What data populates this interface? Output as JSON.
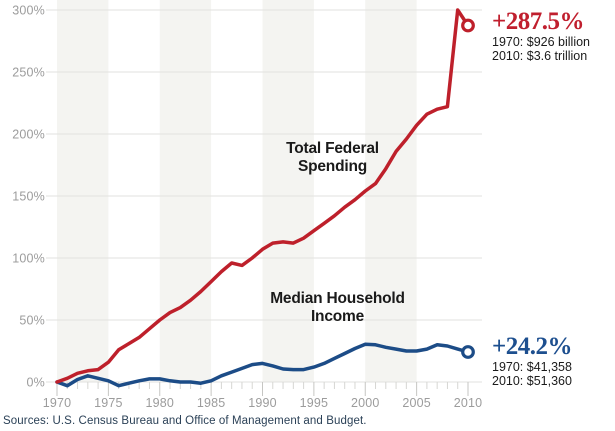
{
  "chart_data": {
    "type": "line",
    "x": [
      1970,
      1971,
      1972,
      1973,
      1974,
      1975,
      1976,
      1977,
      1978,
      1979,
      1980,
      1981,
      1982,
      1983,
      1984,
      1985,
      1986,
      1987,
      1988,
      1989,
      1990,
      1991,
      1992,
      1993,
      1994,
      1995,
      1996,
      1997,
      1998,
      1999,
      2000,
      2001,
      2002,
      2003,
      2004,
      2005,
      2006,
      2007,
      2008,
      2009,
      2010
    ],
    "series": [
      {
        "key": "spending",
        "name": "Total Federal Spending",
        "color": "#be202b",
        "values": [
          0,
          3,
          7,
          9,
          10,
          16,
          26,
          31,
          36,
          43,
          50,
          56,
          60,
          66,
          73,
          81,
          89,
          96,
          94,
          100,
          107,
          112,
          113,
          112,
          116,
          122,
          128,
          134,
          141,
          147,
          154,
          160,
          172,
          186,
          196,
          207,
          216,
          220,
          222,
          300,
          287.5
        ],
        "end_value_label": "+287.5%"
      },
      {
        "key": "income",
        "name": "Median Household Income",
        "color": "#1c4c87",
        "values": [
          0,
          -3,
          2,
          5,
          3,
          1,
          -3,
          -1,
          1,
          2.5,
          2.5,
          1,
          0,
          0,
          -1,
          1,
          5,
          8,
          11,
          14,
          15,
          13,
          10.5,
          10,
          10,
          12,
          15,
          19,
          23,
          27,
          30.5,
          30,
          28,
          26.5,
          25,
          25,
          26.5,
          30,
          29,
          26.5,
          24.2
        ],
        "end_value_label": "+24.2%"
      }
    ],
    "ylim": [
      0,
      300
    ],
    "yticks": [
      {
        "v": 0,
        "label": "0%"
      },
      {
        "v": 50,
        "label": "50%"
      },
      {
        "v": 100,
        "label": "100%"
      },
      {
        "v": 150,
        "label": "150%"
      },
      {
        "v": 200,
        "label": "200%"
      },
      {
        "v": 250,
        "label": "250%"
      },
      {
        "v": 300,
        "label": "300%"
      }
    ],
    "xticks": [
      {
        "v": 1970,
        "label": "1970"
      },
      {
        "v": 1975,
        "label": "1975"
      },
      {
        "v": 1980,
        "label": "1980"
      },
      {
        "v": 1985,
        "label": "1985"
      },
      {
        "v": 1990,
        "label": "1990"
      },
      {
        "v": 1995,
        "label": "1995"
      },
      {
        "v": 2000,
        "label": "2000"
      },
      {
        "v": 2005,
        "label": "2005"
      },
      {
        "v": 2010,
        "label": "2010"
      }
    ],
    "grid": "horizontal",
    "background_bands": "alternating light-gray 5-year columns",
    "legend_position": "inline-labels"
  },
  "series_labels": {
    "spending_line1": "Total Federal",
    "spending_line2": "Spending",
    "income_line1": "Median Household",
    "income_line2": "Income"
  },
  "annotations": {
    "spending": {
      "pct": "+287.5%",
      "detail_1970": "1970: $926 billion",
      "detail_2010": "2010: $3.6 trillion"
    },
    "income": {
      "pct": "+24.2%",
      "detail_1970": "1970: $41,358",
      "detail_2010": "2010: $51,360"
    }
  },
  "source": "Sources: U.S. Census Bureau and Office of Management and Budget.",
  "colors": {
    "spending_line": "#be202b",
    "income_line": "#1c4c87",
    "spending_text": "#c01f2e",
    "income_text": "#1d4f8f",
    "grid": "#e2e2df",
    "band": "#f4f4f1",
    "major_tick": "#c6c6c3",
    "minor_tick": "#d6d6d3",
    "axis_text": "#9c9c9c",
    "detail_text": "#1b1b1b",
    "source_text": "#2b4157"
  }
}
